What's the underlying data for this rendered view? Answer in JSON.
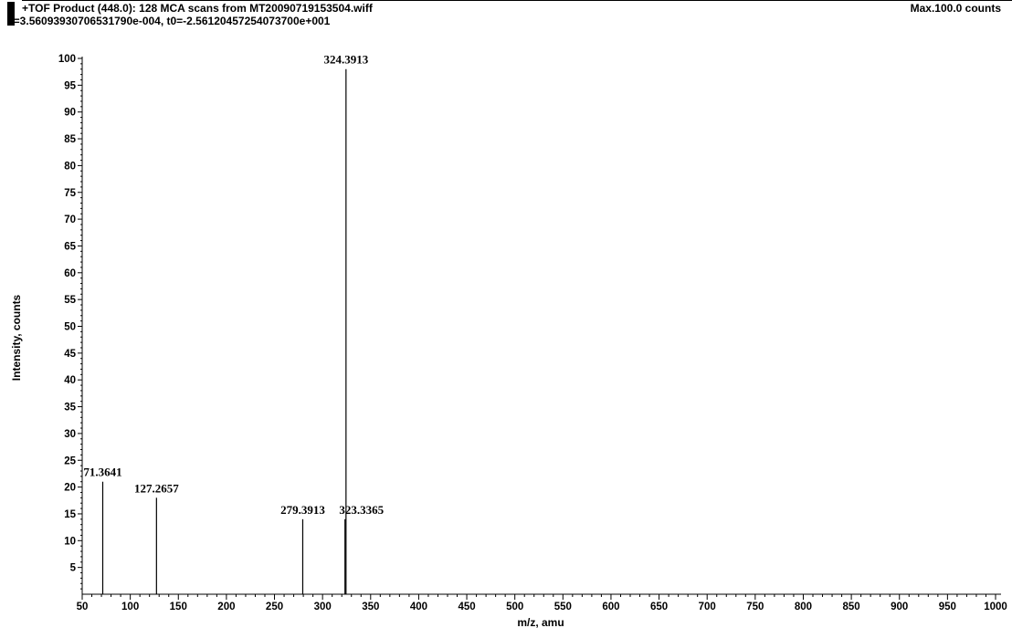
{
  "header": {
    "title": "+TOF Product (448.0): 128 MCA scans from MT20090719153504.wiff",
    "subtitle": "a=3.56093930706531790e-004, t0=-2.56120457254073700e+001",
    "max_label": "Max.100.0 counts"
  },
  "chart_data": {
    "type": "bar",
    "xlabel": "m/z, amu",
    "ylabel": "Intensity, counts",
    "xlim": [
      50,
      1000
    ],
    "ylim": [
      0,
      100
    ],
    "x_ticks": [
      50,
      100,
      150,
      200,
      250,
      300,
      350,
      400,
      450,
      500,
      550,
      600,
      650,
      700,
      750,
      800,
      850,
      900,
      950,
      1000
    ],
    "y_ticks": [
      5,
      10,
      15,
      20,
      25,
      30,
      35,
      40,
      45,
      50,
      55,
      60,
      65,
      70,
      75,
      80,
      85,
      90,
      95,
      100
    ],
    "grid": false,
    "peaks": [
      {
        "x": 71.3641,
        "y": 21,
        "label": "71.3641"
      },
      {
        "x": 127.2657,
        "y": 18,
        "label": "127.2657"
      },
      {
        "x": 279.3913,
        "y": 14,
        "label": "279.3913"
      },
      {
        "x": 323.3365,
        "y": 14,
        "label": "323.3365"
      },
      {
        "x": 324.3913,
        "y": 98,
        "label": "324.3913"
      }
    ]
  }
}
